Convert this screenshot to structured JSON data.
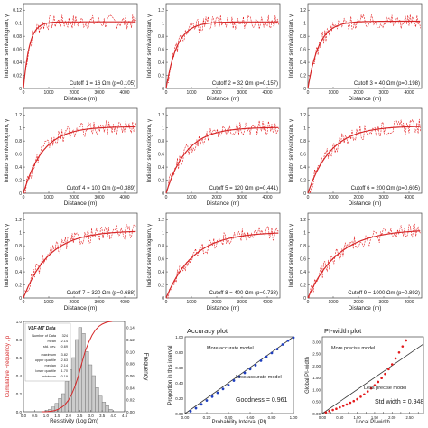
{
  "variograms": {
    "ylabel": "Indicator semivariogram, γ",
    "xlabel": "Distance (m)",
    "xticks": [
      0,
      1000,
      2000,
      3000,
      4000
    ],
    "xlim": [
      0,
      4500
    ],
    "panels": [
      {
        "caption": "Cutoff 1 = 16 Ωm (p=0.105)",
        "yticks": [
          0,
          0.02,
          0.04,
          0.06,
          0.08,
          0.1,
          0.12
        ],
        "ymax": 0.13,
        "sill": 0.102,
        "range": 700
      },
      {
        "caption": "Cutoff 2 = 32 Ωm (p=0.157)",
        "yticks": [
          0,
          0.2,
          0.4,
          0.6,
          0.8,
          1.0,
          1.2
        ],
        "ymax": 1.3,
        "sill": 1.02,
        "range": 1300
      },
      {
        "caption": "Cutoff 3 = 40 Ωm (p=0.198)",
        "yticks": [
          0,
          0.2,
          0.4,
          0.6,
          0.8,
          1.0,
          1.2
        ],
        "ymax": 1.3,
        "sill": 1.03,
        "range": 1300
      },
      {
        "caption": "Cutoff 4 = 100 Ωm (p=0.389)",
        "yticks": [
          0,
          0.2,
          0.4,
          0.6,
          0.8,
          1.0,
          1.2
        ],
        "ymax": 1.3,
        "sill": 1.02,
        "range": 2300
      },
      {
        "caption": "Cutoff 5 = 120 Ωm (p=0.441)",
        "yticks": [
          0,
          0.2,
          0.4,
          0.6,
          0.8,
          1.0,
          1.2
        ],
        "ymax": 1.3,
        "sill": 1.01,
        "range": 2400
      },
      {
        "caption": "Cutoff 6 = 200 Ωm (p=0.605)",
        "yticks": [
          0,
          0.2,
          0.4,
          0.6,
          0.8,
          1.0,
          1.2
        ],
        "ymax": 1.3,
        "sill": 1.03,
        "range": 2700
      },
      {
        "caption": "Cutoff 7 = 320 Ωm (p=0.688)",
        "yticks": [
          0,
          0.2,
          0.4,
          0.6,
          0.8,
          1.0,
          1.2
        ],
        "ymax": 1.3,
        "sill": 1.03,
        "range": 3000
      },
      {
        "caption": "Cutoff 8 = 400 Ωm (p=0.738)",
        "yticks": [
          0,
          0.2,
          0.4,
          0.6,
          0.8,
          1.0,
          1.2
        ],
        "ymax": 1.3,
        "sill": 1.01,
        "range": 3200
      },
      {
        "caption": "Cutoff 9 = 1000 Ωm (p=0.892)",
        "yticks": [
          0,
          0.2,
          0.4,
          0.6,
          0.8,
          1.0,
          1.2
        ],
        "ymax": 1.3,
        "sill": 1.05,
        "range": 3500
      }
    ]
  },
  "histogram": {
    "ylabel_left": "Cumulative Frequency , p",
    "ylabel_right": "Frequency",
    "xlabel": "Resistivity (Log Ωm)",
    "xticks": [
      "0.0",
      "0.5",
      "1.0",
      "1.5",
      "2.0",
      "2.5",
      "3.0",
      "3.5",
      "4.0",
      "4.5"
    ],
    "yticks_left": [
      "0.0",
      "0.2",
      "0.4",
      "0.6",
      "0.8",
      "1.0"
    ],
    "yticks_right": [
      "0.00",
      "0.02",
      "0.04",
      "0.06",
      "0.08",
      "0.10",
      "0.12",
      "0.14"
    ],
    "bars": [
      0.0,
      0.002,
      0.004,
      0.008,
      0.014,
      0.022,
      0.03,
      0.05,
      0.07,
      0.09,
      0.12,
      0.14,
      0.13,
      0.1,
      0.078,
      0.06,
      0.04,
      0.026,
      0.016,
      0.01,
      0.004
    ],
    "bin_start": 0.8,
    "bin_width": 0.15,
    "stats_title": "VLF-MT Data",
    "stats": [
      {
        "label": "Number of Data",
        "value": "324"
      },
      {
        "label": "mean",
        "value": "2.14"
      },
      {
        "label": "std. dev.",
        "value": "0.69"
      },
      {
        "label": "maximum",
        "value": "3.82"
      },
      {
        "label": "upper quartile",
        "value": "2.63"
      },
      {
        "label": "median",
        "value": "2.14"
      },
      {
        "label": "lower quartile",
        "value": "1.70"
      },
      {
        "label": "minimum",
        "value": "-0.19"
      }
    ]
  },
  "accuracy": {
    "title": "Accuracy plot",
    "xlabel": "Probability Interval (PI)",
    "ylabel": "Proportion in this interval",
    "ann_top": "More accurate model",
    "ann_bottom": "Less accurate model",
    "goodness": "Goodness = 0.961",
    "xticks": [
      "0.00",
      "0.20",
      "0.40",
      "0.60",
      "0.80",
      "1.00"
    ],
    "yticks": [
      "0.00",
      "0.20",
      "0.40",
      "0.60",
      "0.80",
      "1.00"
    ],
    "points": [
      [
        0.05,
        0.03
      ],
      [
        0.1,
        0.07
      ],
      [
        0.15,
        0.12
      ],
      [
        0.2,
        0.17
      ],
      [
        0.25,
        0.22
      ],
      [
        0.3,
        0.27
      ],
      [
        0.35,
        0.32
      ],
      [
        0.4,
        0.37
      ],
      [
        0.45,
        0.43
      ],
      [
        0.5,
        0.48
      ],
      [
        0.55,
        0.53
      ],
      [
        0.6,
        0.58
      ],
      [
        0.65,
        0.63
      ],
      [
        0.7,
        0.69
      ],
      [
        0.75,
        0.74
      ],
      [
        0.8,
        0.79
      ],
      [
        0.85,
        0.84
      ],
      [
        0.9,
        0.9
      ],
      [
        0.95,
        0.95
      ],
      [
        1.0,
        0.99
      ]
    ]
  },
  "piwidth": {
    "title": "PI-width plot",
    "xlabel": "Local PI-width",
    "ylabel": "Global PI-width",
    "ann_top": "More precise model",
    "ann_bottom": "Less precise model",
    "std_width": "Std width = 0.948",
    "xticks": [
      "0.00",
      "0.25",
      "0.50",
      "0.75",
      "1.00",
      "1.25",
      "1.50",
      "1.75",
      "2.00",
      "2.25",
      "2.50",
      "2.75"
    ],
    "yticks": [
      "0.00",
      "0.50",
      "1.00",
      "1.50",
      "2.00",
      "2.50",
      "3.00"
    ],
    "points": [
      [
        0.1,
        0.05
      ],
      [
        0.2,
        0.1
      ],
      [
        0.3,
        0.15
      ],
      [
        0.4,
        0.2
      ],
      [
        0.5,
        0.26
      ],
      [
        0.6,
        0.32
      ],
      [
        0.7,
        0.38
      ],
      [
        0.8,
        0.45
      ],
      [
        0.9,
        0.52
      ],
      [
        1.0,
        0.6
      ],
      [
        1.1,
        0.7
      ],
      [
        1.2,
        0.8
      ],
      [
        1.3,
        0.92
      ],
      [
        1.4,
        1.05
      ],
      [
        1.5,
        1.18
      ],
      [
        1.6,
        1.32
      ],
      [
        1.7,
        1.48
      ],
      [
        1.8,
        1.65
      ],
      [
        1.9,
        1.85
      ],
      [
        2.0,
        2.05
      ],
      [
        2.1,
        2.3
      ],
      [
        2.2,
        2.55
      ],
      [
        2.3,
        2.8
      ],
      [
        2.4,
        3.05
      ]
    ]
  },
  "colors": {
    "model": "#d62728",
    "data": "#e31a1c",
    "point": "#1f3fbf",
    "bar": "#cccccc",
    "line": "#333333"
  }
}
